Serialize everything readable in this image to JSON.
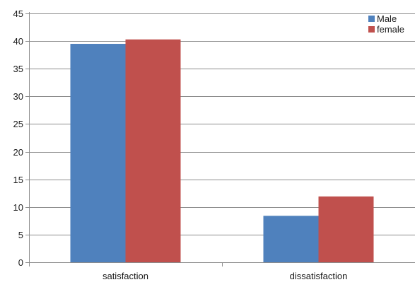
{
  "chart_data": {
    "type": "bar",
    "categories": [
      "satisfaction",
      "dissatisfaction"
    ],
    "series": [
      {
        "name": "Male",
        "values": [
          39.5,
          8.4
        ],
        "color": "#4f81bd"
      },
      {
        "name": "female",
        "values": [
          40.3,
          11.9
        ],
        "color": "#c0504d"
      }
    ],
    "title": "",
    "xlabel": "",
    "ylabel": "",
    "ylim": [
      0,
      45
    ],
    "ytick_step": 5,
    "yticks": [
      "0",
      "5",
      "10",
      "15",
      "20",
      "25",
      "30",
      "35",
      "40",
      "45"
    ],
    "grid": true,
    "legend_position": "top-right"
  }
}
